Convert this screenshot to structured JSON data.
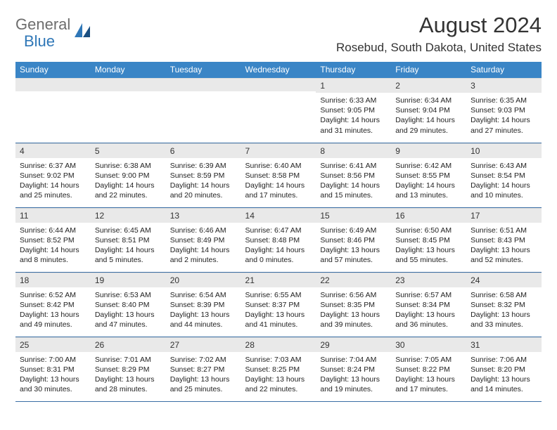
{
  "logo": {
    "word1": "General",
    "word2": "Blue"
  },
  "title": "August 2024",
  "location": "Rosebud, South Dakota, United States",
  "colors": {
    "header_bg": "#3a85c6",
    "header_text": "#ffffff",
    "daynum_bg": "#e9e9e9",
    "row_border": "#3a6ea5",
    "logo_gray": "#6d6d6d",
    "logo_blue": "#2f77b7",
    "page_bg": "#ffffff"
  },
  "days_of_week": [
    "Sunday",
    "Monday",
    "Tuesday",
    "Wednesday",
    "Thursday",
    "Friday",
    "Saturday"
  ],
  "weeks": [
    [
      {
        "n": "",
        "sunrise": "",
        "sunset": "",
        "daylight": ""
      },
      {
        "n": "",
        "sunrise": "",
        "sunset": "",
        "daylight": ""
      },
      {
        "n": "",
        "sunrise": "",
        "sunset": "",
        "daylight": ""
      },
      {
        "n": "",
        "sunrise": "",
        "sunset": "",
        "daylight": ""
      },
      {
        "n": "1",
        "sunrise": "Sunrise: 6:33 AM",
        "sunset": "Sunset: 9:05 PM",
        "daylight": "Daylight: 14 hours and 31 minutes."
      },
      {
        "n": "2",
        "sunrise": "Sunrise: 6:34 AM",
        "sunset": "Sunset: 9:04 PM",
        "daylight": "Daylight: 14 hours and 29 minutes."
      },
      {
        "n": "3",
        "sunrise": "Sunrise: 6:35 AM",
        "sunset": "Sunset: 9:03 PM",
        "daylight": "Daylight: 14 hours and 27 minutes."
      }
    ],
    [
      {
        "n": "4",
        "sunrise": "Sunrise: 6:37 AM",
        "sunset": "Sunset: 9:02 PM",
        "daylight": "Daylight: 14 hours and 25 minutes."
      },
      {
        "n": "5",
        "sunrise": "Sunrise: 6:38 AM",
        "sunset": "Sunset: 9:00 PM",
        "daylight": "Daylight: 14 hours and 22 minutes."
      },
      {
        "n": "6",
        "sunrise": "Sunrise: 6:39 AM",
        "sunset": "Sunset: 8:59 PM",
        "daylight": "Daylight: 14 hours and 20 minutes."
      },
      {
        "n": "7",
        "sunrise": "Sunrise: 6:40 AM",
        "sunset": "Sunset: 8:58 PM",
        "daylight": "Daylight: 14 hours and 17 minutes."
      },
      {
        "n": "8",
        "sunrise": "Sunrise: 6:41 AM",
        "sunset": "Sunset: 8:56 PM",
        "daylight": "Daylight: 14 hours and 15 minutes."
      },
      {
        "n": "9",
        "sunrise": "Sunrise: 6:42 AM",
        "sunset": "Sunset: 8:55 PM",
        "daylight": "Daylight: 14 hours and 13 minutes."
      },
      {
        "n": "10",
        "sunrise": "Sunrise: 6:43 AM",
        "sunset": "Sunset: 8:54 PM",
        "daylight": "Daylight: 14 hours and 10 minutes."
      }
    ],
    [
      {
        "n": "11",
        "sunrise": "Sunrise: 6:44 AM",
        "sunset": "Sunset: 8:52 PM",
        "daylight": "Daylight: 14 hours and 8 minutes."
      },
      {
        "n": "12",
        "sunrise": "Sunrise: 6:45 AM",
        "sunset": "Sunset: 8:51 PM",
        "daylight": "Daylight: 14 hours and 5 minutes."
      },
      {
        "n": "13",
        "sunrise": "Sunrise: 6:46 AM",
        "sunset": "Sunset: 8:49 PM",
        "daylight": "Daylight: 14 hours and 2 minutes."
      },
      {
        "n": "14",
        "sunrise": "Sunrise: 6:47 AM",
        "sunset": "Sunset: 8:48 PM",
        "daylight": "Daylight: 14 hours and 0 minutes."
      },
      {
        "n": "15",
        "sunrise": "Sunrise: 6:49 AM",
        "sunset": "Sunset: 8:46 PM",
        "daylight": "Daylight: 13 hours and 57 minutes."
      },
      {
        "n": "16",
        "sunrise": "Sunrise: 6:50 AM",
        "sunset": "Sunset: 8:45 PM",
        "daylight": "Daylight: 13 hours and 55 minutes."
      },
      {
        "n": "17",
        "sunrise": "Sunrise: 6:51 AM",
        "sunset": "Sunset: 8:43 PM",
        "daylight": "Daylight: 13 hours and 52 minutes."
      }
    ],
    [
      {
        "n": "18",
        "sunrise": "Sunrise: 6:52 AM",
        "sunset": "Sunset: 8:42 PM",
        "daylight": "Daylight: 13 hours and 49 minutes."
      },
      {
        "n": "19",
        "sunrise": "Sunrise: 6:53 AM",
        "sunset": "Sunset: 8:40 PM",
        "daylight": "Daylight: 13 hours and 47 minutes."
      },
      {
        "n": "20",
        "sunrise": "Sunrise: 6:54 AM",
        "sunset": "Sunset: 8:39 PM",
        "daylight": "Daylight: 13 hours and 44 minutes."
      },
      {
        "n": "21",
        "sunrise": "Sunrise: 6:55 AM",
        "sunset": "Sunset: 8:37 PM",
        "daylight": "Daylight: 13 hours and 41 minutes."
      },
      {
        "n": "22",
        "sunrise": "Sunrise: 6:56 AM",
        "sunset": "Sunset: 8:35 PM",
        "daylight": "Daylight: 13 hours and 39 minutes."
      },
      {
        "n": "23",
        "sunrise": "Sunrise: 6:57 AM",
        "sunset": "Sunset: 8:34 PM",
        "daylight": "Daylight: 13 hours and 36 minutes."
      },
      {
        "n": "24",
        "sunrise": "Sunrise: 6:58 AM",
        "sunset": "Sunset: 8:32 PM",
        "daylight": "Daylight: 13 hours and 33 minutes."
      }
    ],
    [
      {
        "n": "25",
        "sunrise": "Sunrise: 7:00 AM",
        "sunset": "Sunset: 8:31 PM",
        "daylight": "Daylight: 13 hours and 30 minutes."
      },
      {
        "n": "26",
        "sunrise": "Sunrise: 7:01 AM",
        "sunset": "Sunset: 8:29 PM",
        "daylight": "Daylight: 13 hours and 28 minutes."
      },
      {
        "n": "27",
        "sunrise": "Sunrise: 7:02 AM",
        "sunset": "Sunset: 8:27 PM",
        "daylight": "Daylight: 13 hours and 25 minutes."
      },
      {
        "n": "28",
        "sunrise": "Sunrise: 7:03 AM",
        "sunset": "Sunset: 8:25 PM",
        "daylight": "Daylight: 13 hours and 22 minutes."
      },
      {
        "n": "29",
        "sunrise": "Sunrise: 7:04 AM",
        "sunset": "Sunset: 8:24 PM",
        "daylight": "Daylight: 13 hours and 19 minutes."
      },
      {
        "n": "30",
        "sunrise": "Sunrise: 7:05 AM",
        "sunset": "Sunset: 8:22 PM",
        "daylight": "Daylight: 13 hours and 17 minutes."
      },
      {
        "n": "31",
        "sunrise": "Sunrise: 7:06 AM",
        "sunset": "Sunset: 8:20 PM",
        "daylight": "Daylight: 13 hours and 14 minutes."
      }
    ]
  ]
}
